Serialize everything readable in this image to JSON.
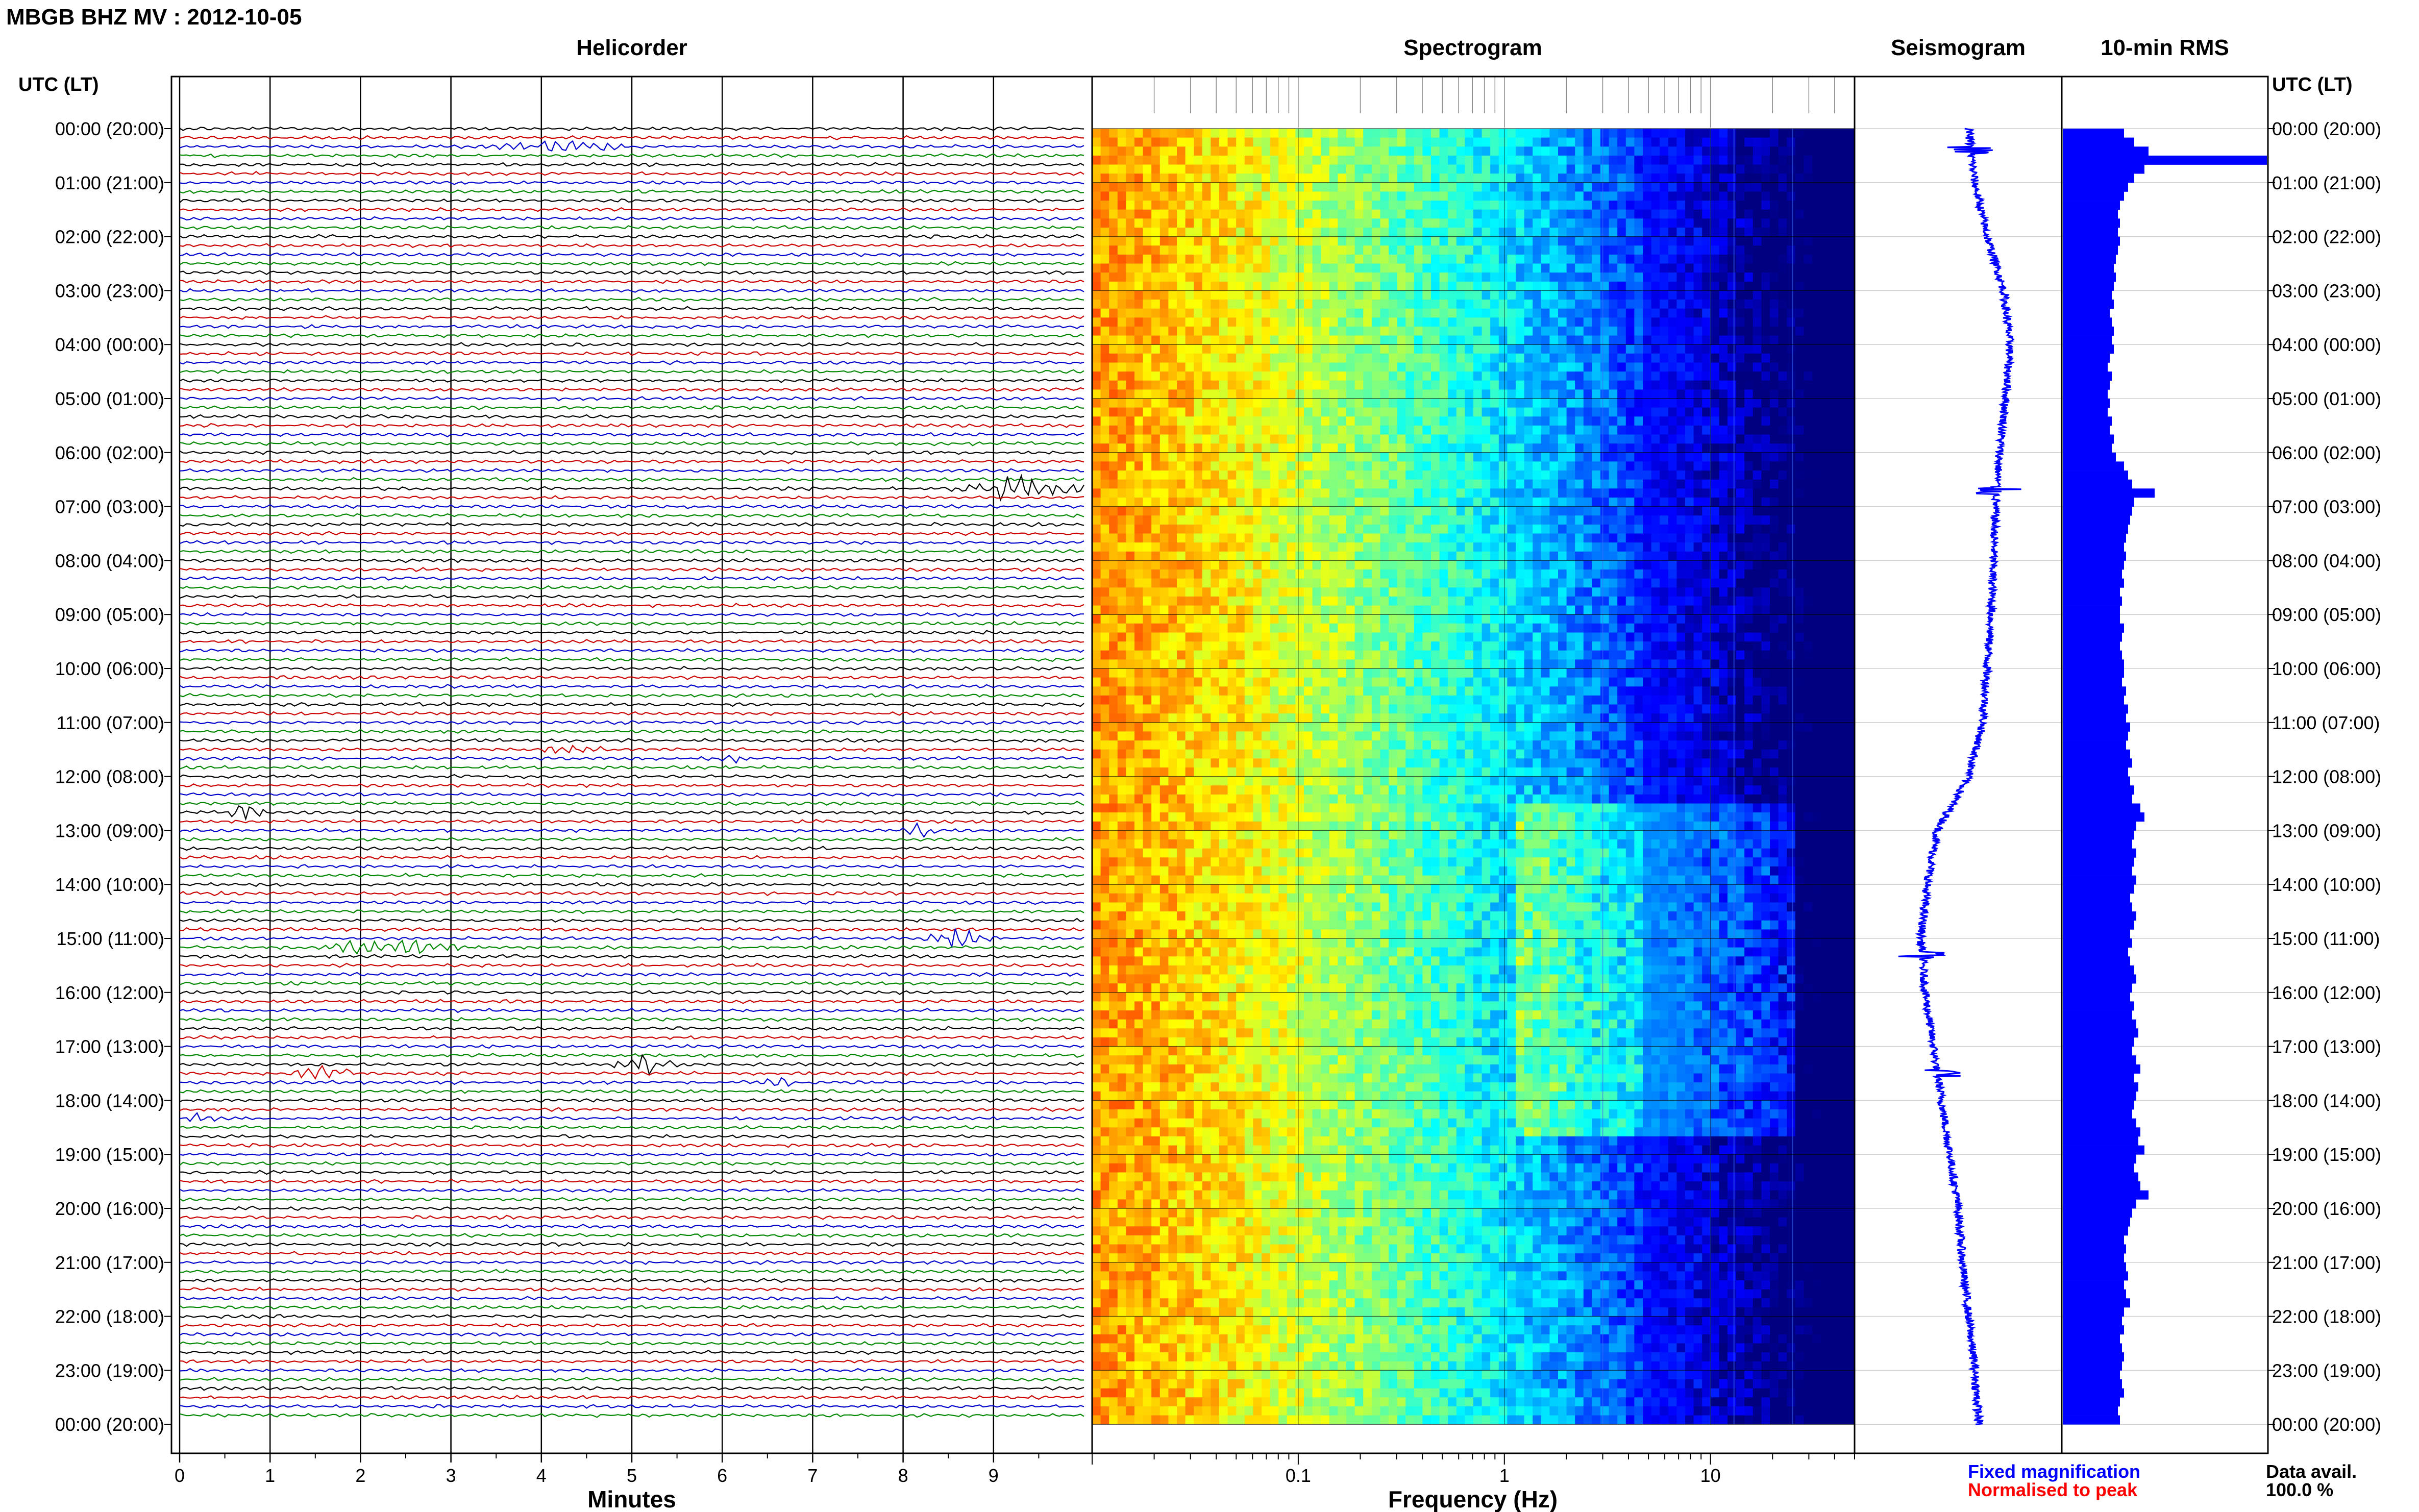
{
  "page_title": "MBGB BHZ MV : 2012-10-05",
  "panels": {
    "helicorder": "Helicorder",
    "spectrogram": "Spectrogram",
    "seismogram": "Seismogram",
    "rms": "10-min RMS"
  },
  "axis_header": {
    "left": "UTC (LT)",
    "right": "UTC (LT)"
  },
  "time_labels": [
    "00:00 (20:00)",
    "01:00 (21:00)",
    "02:00 (22:00)",
    "03:00 (23:00)",
    "04:00 (00:00)",
    "05:00 (01:00)",
    "06:00 (02:00)",
    "07:00 (03:00)",
    "08:00 (04:00)",
    "09:00 (05:00)",
    "10:00 (06:00)",
    "11:00 (07:00)",
    "12:00 (08:00)",
    "13:00 (09:00)",
    "14:00 (10:00)",
    "15:00 (11:00)",
    "16:00 (12:00)",
    "17:00 (13:00)",
    "18:00 (14:00)",
    "19:00 (15:00)",
    "20:00 (16:00)",
    "21:00 (17:00)",
    "22:00 (18:00)",
    "23:00 (19:00)",
    "00:00 (20:00)"
  ],
  "footer": {
    "fixed_magnification": "Fixed magnification",
    "normalised_to_peak": "Normalised to peak",
    "data_avail_label": "Data avail.",
    "data_avail_value": "100.0 %"
  },
  "colors": {
    "trace_cycle": [
      "#000000",
      "#cc0000",
      "#0000cc",
      "#008800"
    ],
    "seismogram": "#0000ff",
    "rms_bar": "#0000ff",
    "fixed_mag_text": "#0000ff",
    "normalised_text": "#ff0000",
    "spectrogram_low": "#00008b",
    "spectrogram_high": "#ff4000"
  },
  "chart_data": [
    {
      "type": "line",
      "name": "helicorder",
      "xlabel": "Minutes",
      "xlim": [
        0,
        10
      ],
      "x_ticks": [
        "0",
        "1",
        "2",
        "3",
        "4",
        "5",
        "6",
        "7",
        "8",
        "9"
      ],
      "rows_per_hour": 6,
      "hours": 24,
      "events": [
        {
          "hour": 0,
          "row": 2,
          "minute_start": 3.5,
          "minute_end": 5.0,
          "amplitude": 1.5,
          "note": "large"
        },
        {
          "hour": 6,
          "row": 4,
          "minute_start": 8.5,
          "minute_end": 10.0,
          "amplitude": 2.5
        },
        {
          "hour": 11,
          "row": 3,
          "minute_start": 3.9,
          "minute_end": 4.8,
          "amplitude": 1.0
        },
        {
          "hour": 11,
          "row": 4,
          "minute_start": 6.0,
          "minute_end": 6.3,
          "amplitude": 1.0
        },
        {
          "hour": 12,
          "row": 4,
          "minute_start": 0.5,
          "minute_end": 1.0,
          "amplitude": 2.0
        },
        {
          "hour": 13,
          "row": 0,
          "minute_start": 8.0,
          "minute_end": 8.4,
          "amplitude": 1.5
        },
        {
          "hour": 15,
          "row": 0,
          "minute_start": 8.2,
          "minute_end": 9.0,
          "amplitude": 2.0
        },
        {
          "hour": 15,
          "row": 1,
          "minute_start": 1.5,
          "minute_end": 3.2,
          "amplitude": 2.0
        },
        {
          "hour": 17,
          "row": 2,
          "minute_start": 4.8,
          "minute_end": 5.5,
          "amplitude": 3.0
        },
        {
          "hour": 17,
          "row": 3,
          "minute_start": 1.2,
          "minute_end": 2.0,
          "amplitude": 1.5
        },
        {
          "hour": 17,
          "row": 4,
          "minute_start": 6.4,
          "minute_end": 6.8,
          "amplitude": 1.2
        },
        {
          "hour": 18,
          "row": 2,
          "minute_start": 0.0,
          "minute_end": 0.4,
          "amplitude": 1.2
        }
      ]
    },
    {
      "type": "heatmap",
      "name": "spectrogram",
      "xlabel": "Frequency (Hz)",
      "x_scale": "log",
      "xlim": [
        0.01,
        50
      ],
      "x_ticks": [
        "0.1",
        "1",
        "10"
      ],
      "y_range_hours": [
        0,
        24
      ],
      "broadband_hours": [
        12.5,
        18.5
      ],
      "lines_hz": [
        3,
        10,
        13,
        25
      ]
    },
    {
      "type": "line",
      "name": "seismogram",
      "y_range_hours": [
        0,
        24
      ],
      "baseline_by_hour": [
        0.55,
        0.58,
        0.64,
        0.72,
        0.75,
        0.73,
        0.7,
        0.68,
        0.67,
        0.66,
        0.64,
        0.62,
        0.55,
        0.4,
        0.35,
        0.32,
        0.34,
        0.38,
        0.42,
        0.46,
        0.5,
        0.52,
        0.55,
        0.58,
        0.6
      ],
      "spikes_hours": [
        0.4,
        6.7,
        15.3,
        17.5
      ]
    },
    {
      "type": "bar",
      "name": "rms",
      "orientation": "horizontal",
      "interval_minutes": 10,
      "values": [
        0.3,
        0.35,
        0.42,
        1.0,
        0.4,
        0.35,
        0.32,
        0.3,
        0.28,
        0.27,
        0.28,
        0.27,
        0.28,
        0.27,
        0.26,
        0.25,
        0.26,
        0.25,
        0.24,
        0.25,
        0.23,
        0.24,
        0.25,
        0.24,
        0.25,
        0.23,
        0.22,
        0.24,
        0.23,
        0.22,
        0.23,
        0.22,
        0.24,
        0.23,
        0.25,
        0.24,
        0.26,
        0.3,
        0.32,
        0.34,
        0.45,
        0.35,
        0.34,
        0.33,
        0.32,
        0.31,
        0.3,
        0.31,
        0.3,
        0.29,
        0.3,
        0.28,
        0.29,
        0.28,
        0.28,
        0.3,
        0.29,
        0.28,
        0.29,
        0.3,
        0.3,
        0.29,
        0.31,
        0.3,
        0.32,
        0.31,
        0.33,
        0.32,
        0.31,
        0.33,
        0.34,
        0.32,
        0.33,
        0.35,
        0.34,
        0.38,
        0.4,
        0.36,
        0.35,
        0.34,
        0.36,
        0.35,
        0.34,
        0.36,
        0.35,
        0.33,
        0.34,
        0.36,
        0.35,
        0.33,
        0.34,
        0.32,
        0.33,
        0.35,
        0.36,
        0.34,
        0.33,
        0.35,
        0.34,
        0.36,
        0.37,
        0.35,
        0.34,
        0.36,
        0.38,
        0.35,
        0.37,
        0.36,
        0.35,
        0.34,
        0.36,
        0.38,
        0.37,
        0.4,
        0.36,
        0.35,
        0.37,
        0.38,
        0.42,
        0.36,
        0.34,
        0.33,
        0.32,
        0.3,
        0.31,
        0.3,
        0.31,
        0.32,
        0.3,
        0.31,
        0.33,
        0.3,
        0.29,
        0.3,
        0.28,
        0.29,
        0.3,
        0.29,
        0.28,
        0.29,
        0.3,
        0.28,
        0.27,
        0.28
      ]
    }
  ]
}
